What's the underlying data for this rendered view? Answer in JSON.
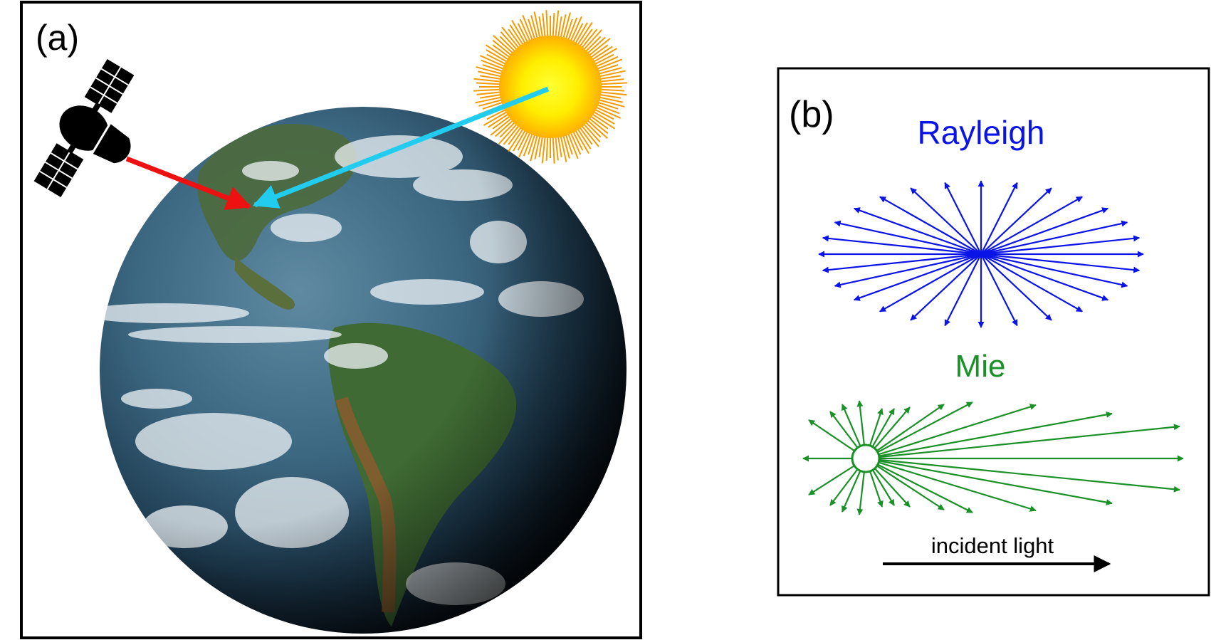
{
  "panel_a": {
    "label": "(a)"
  },
  "panel_b": {
    "label": "(b)",
    "rayleigh_title": "Rayleigh",
    "mie_title": "Mie",
    "incident_label": "incident light"
  },
  "colors": {
    "rayleigh": "#0a14e6",
    "mie": "#1a9126",
    "satellite_arrow": "#ee1111",
    "sun_arrow": "#22ccee",
    "sun_core": "#ffee00",
    "sun_rays": "#f59a00"
  },
  "icons": [
    "satellite-icon",
    "sun-icon",
    "earth-globe"
  ]
}
